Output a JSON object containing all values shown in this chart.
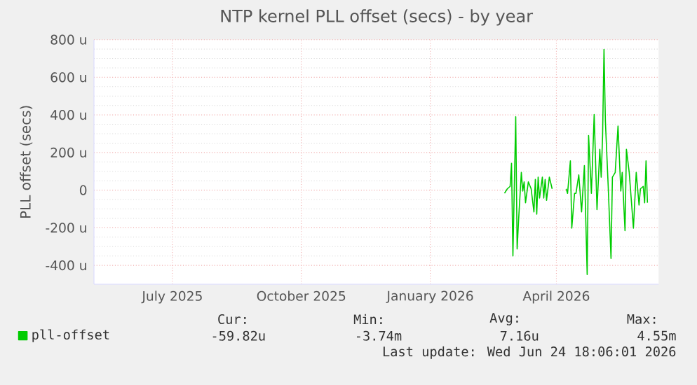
{
  "chart_data": {
    "type": "line",
    "title": "NTP kernel PLL offset (secs) - by year",
    "ylabel": "PLL offset (secs)",
    "xlim": [
      "2025-05-06",
      "2026-06-13"
    ],
    "xticks": [
      {
        "value": "2025-07-01",
        "label": "July 2025"
      },
      {
        "value": "2025-10-01",
        "label": "October 2025"
      },
      {
        "value": "2026-01-01",
        "label": "January 2026"
      },
      {
        "value": "2026-04-01",
        "label": "April 2026"
      }
    ],
    "ylim": [
      -500,
      800
    ],
    "yticks": [
      {
        "value": -400,
        "label": "-400 u"
      },
      {
        "value": -200,
        "label": "-200 u"
      },
      0,
      {
        "value": 200,
        "label": "200 u"
      },
      {
        "value": 400,
        "label": "400 u"
      },
      {
        "value": 600,
        "label": "600 u"
      },
      {
        "value": 800,
        "label": "800 u"
      }
    ],
    "grid": true,
    "legend": "bottom",
    "x": [
      "2026-02-23",
      "2026-02-25",
      "2026-02-27",
      "2026-02-28",
      "2026-03-01",
      "2026-03-03",
      "2026-03-04",
      "2026-03-05",
      "2026-03-07",
      "2026-03-08",
      "2026-03-09",
      "2026-03-10",
      "2026-03-12",
      "2026-03-14",
      "2026-03-16",
      "2026-03-17",
      "2026-03-18",
      "2026-03-19",
      "2026-03-20",
      "2026-03-22",
      "2026-03-23",
      "2026-03-24",
      "2026-03-25",
      "2026-03-27",
      "2026-03-29",
      "2026-04-04",
      "2026-04-08",
      "2026-04-09",
      "2026-04-11",
      "2026-04-12",
      "2026-04-14",
      "2026-04-15",
      "2026-04-17",
      "2026-04-19",
      "2026-04-21",
      "2026-04-23",
      "2026-04-24",
      "2026-04-26",
      "2026-04-28",
      "2026-04-30",
      "2026-05-02",
      "2026-05-03",
      "2026-05-04",
      "2026-05-05",
      "2026-05-06",
      "2026-05-08",
      "2026-05-10",
      "2026-05-11",
      "2026-05-13",
      "2026-05-15",
      "2026-05-17",
      "2026-05-18",
      "2026-05-20",
      "2026-05-21",
      "2026-05-23",
      "2026-05-24",
      "2026-05-26",
      "2026-05-28",
      "2026-05-30",
      "2026-05-31",
      "2026-06-02",
      "2026-06-03",
      "2026-06-04",
      "2026-06-05"
    ],
    "series": [
      {
        "name": "pll-offset",
        "color": "#00cc00",
        "values": [
          -17,
          7,
          20,
          143,
          -350,
          390,
          -313,
          -165,
          94,
          -5,
          44,
          -67,
          44,
          7,
          -116,
          57,
          -128,
          69,
          -42,
          69,
          -42,
          57,
          -54,
          69,
          7,
          null,
          7,
          -17,
          156,
          -202,
          -17,
          -17,
          81,
          -116,
          131,
          -449,
          291,
          -17,
          402,
          -104,
          217,
          69,
          291,
          748,
          365,
          20,
          -363,
          69,
          94,
          341,
          -5,
          94,
          -215,
          217,
          94,
          -5,
          -202,
          94,
          -79,
          7,
          20,
          -67,
          156,
          -67
        ]
      }
    ],
    "annotations": [
      "Cur:",
      "Min:",
      "Avg:",
      "Max:",
      "-59.82u",
      "-3.74m",
      "7.16u",
      "4.55m",
      "Last update: Wed Jun 24 18:06:01 2026"
    ]
  }
}
